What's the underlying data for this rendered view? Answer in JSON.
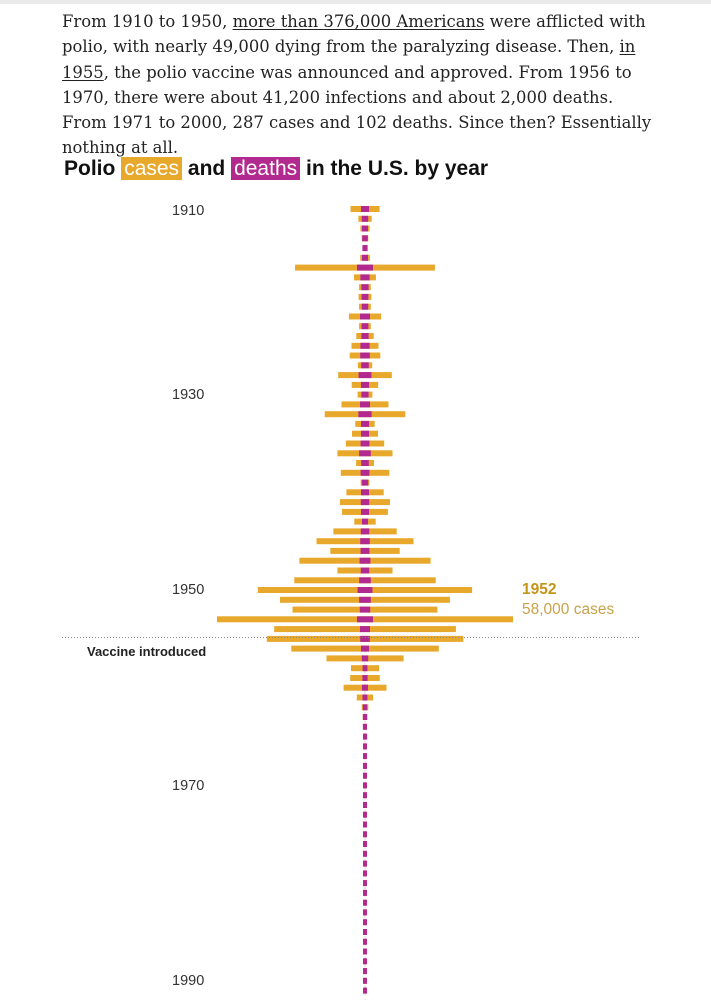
{
  "intro": {
    "p1": "From 1910 to 1950, ",
    "link1": "more than 376,000 Americans",
    "p2": " were afflicted with polio, with nearly 49,000 dying from the paralyzing disease. Then, ",
    "link2": "in 1955",
    "p3": ", the polio vaccine was announced and approved. From 1956 to 1970, there were about 41,200 infections and about 2,000 deaths. From 1971 to 2000, 287 cases and 102 deaths. Since then? Essentially nothing at all."
  },
  "title": {
    "pre": "Polio",
    "cases_word": "cases",
    "mid": "and",
    "deaths_word": "deaths",
    "post": "in the U.S. by year"
  },
  "colors": {
    "cases": "#e7a82b",
    "deaths": "#b2298f",
    "annotation_year": "#c49417",
    "annotation_cases": "#c9a24a"
  },
  "chart_data": {
    "type": "bar",
    "orientation": "horizontal-mirrored",
    "title": "Polio cases and deaths in the U.S. by year",
    "series_names": [
      "cases",
      "deaths"
    ],
    "x_range_cases": [
      0,
      58000
    ],
    "years": [
      1910,
      1911,
      1912,
      1913,
      1914,
      1915,
      1916,
      1917,
      1918,
      1919,
      1920,
      1921,
      1922,
      1923,
      1924,
      1925,
      1926,
      1927,
      1928,
      1929,
      1930,
      1931,
      1932,
      1933,
      1934,
      1935,
      1936,
      1937,
      1938,
      1939,
      1940,
      1941,
      1942,
      1943,
      1944,
      1945,
      1946,
      1947,
      1948,
      1949,
      1950,
      1951,
      1952,
      1953,
      1954,
      1955,
      1956,
      1957,
      1958,
      1959,
      1960,
      1961,
      1962,
      1963,
      1964,
      1965,
      1966,
      1967,
      1968,
      1969,
      1970,
      1971,
      1972,
      1973,
      1974,
      1975,
      1976,
      1977,
      1978,
      1979,
      1980,
      1981,
      1982,
      1983,
      1984,
      1985,
      1986,
      1987,
      1988,
      1989,
      1990
    ],
    "cases": [
      5700,
      2600,
      1800,
      1300,
      900,
      1900,
      27400,
      4300,
      2300,
      2500,
      2300,
      6300,
      2300,
      3400,
      5300,
      6000,
      2800,
      10500,
      5200,
      2900,
      9200,
      15800,
      3800,
      5100,
      7500,
      10800,
      3500,
      9500,
      1700,
      7300,
      9800,
      9000,
      4200,
      12400,
      19000,
      13600,
      25700,
      10800,
      27700,
      42000,
      33300,
      28400,
      58000,
      35600,
      38500,
      28900,
      15100,
      5500,
      5800,
      8400,
      3200,
      1300,
      900,
      450,
      120,
      70,
      110,
      40,
      50,
      20,
      30,
      20,
      30,
      20,
      10,
      10,
      10,
      15,
      10,
      30,
      10,
      10,
      10,
      10,
      10,
      10,
      10,
      10,
      10,
      10,
      10
    ],
    "deaths": [
      1000,
      600,
      500,
      400,
      300,
      500,
      6000,
      1300,
      800,
      700,
      600,
      1500,
      700,
      800,
      1300,
      1400,
      900,
      2200,
      1000,
      800,
      1500,
      2300,
      1000,
      1000,
      1200,
      1900,
      900,
      1200,
      600,
      1000,
      1100,
      1000,
      500,
      1100,
      1400,
      1200,
      1700,
      1100,
      1900,
      2700,
      1900,
      1600,
      3100,
      1500,
      1400,
      1000,
      600,
      200,
      300,
      500,
      230,
      90,
      50,
      30,
      20,
      10,
      10,
      10,
      10,
      10,
      10,
      5,
      5,
      5,
      5,
      5,
      5,
      5,
      5,
      5,
      5,
      5,
      5,
      5,
      5,
      5,
      5,
      5,
      5,
      5,
      5
    ],
    "y_tick_labels": [
      "1910",
      "1930",
      "1950",
      "1970",
      "1990"
    ],
    "event": {
      "year": 1955,
      "label": "Vaccine introduced"
    },
    "annotation": {
      "year_label": "1952",
      "value_label": "58,000 cases"
    }
  }
}
